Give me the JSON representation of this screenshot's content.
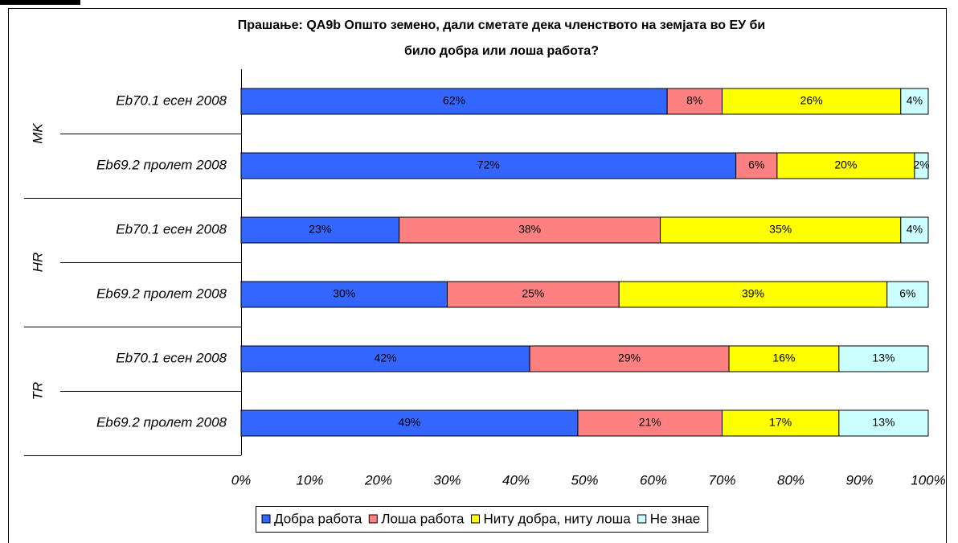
{
  "chart_data": {
    "type": "stacked-bar-horizontal",
    "title": [
      "Прашање: QA9b Општо земено, дали сметате дека членството на земјата во ЕУ би",
      "било добра или лоша работа?"
    ],
    "categories": [
      "Eb70.1 есен 2008",
      "Eb69.2 пролет 2008",
      "Eb70.1 есен 2008",
      "Eb69.2 пролет 2008",
      "Eb70.1 есен 2008",
      "Eb69.2 пролет 2008"
    ],
    "groups": [
      "MK",
      "HR",
      "TR"
    ],
    "series": [
      {
        "name": "Добра работа",
        "color": "#3366ff",
        "values": [
          62,
          72,
          23,
          30,
          42,
          49
        ],
        "value_labels": [
          "62%",
          "72%",
          "23%",
          "30%",
          "42%",
          "49%"
        ]
      },
      {
        "name": "Лоша работа",
        "color": "#ff8080",
        "values": [
          8,
          6,
          38,
          25,
          29,
          21
        ],
        "value_labels": [
          "8%",
          "6%",
          "38%",
          "25%",
          "29%",
          "21%"
        ]
      },
      {
        "name": "Ниту добра, ниту лоша",
        "color": "#ffff00",
        "values": [
          26,
          20,
          35,
          39,
          16,
          17
        ],
        "value_labels": [
          "26%",
          "20%",
          "35%",
          "39%",
          "16%",
          "17%"
        ]
      },
      {
        "name": "Не знае",
        "color": "#ccffff",
        "values": [
          4,
          2,
          4,
          6,
          13,
          13
        ],
        "value_labels": [
          "4%",
          "2%",
          "4%",
          "6%",
          "13%",
          "13%"
        ]
      }
    ],
    "xlim": [
      0,
      100
    ],
    "xticks": [
      {
        "value": 0,
        "label": "0%"
      },
      {
        "value": 10,
        "label": "10%"
      },
      {
        "value": 20,
        "label": "20%"
      },
      {
        "value": 30,
        "label": "30%"
      },
      {
        "value": 40,
        "label": "40%"
      },
      {
        "value": 50,
        "label": "50%"
      },
      {
        "value": 60,
        "label": "60%"
      },
      {
        "value": 70,
        "label": "70%"
      },
      {
        "value": 80,
        "label": "80%"
      },
      {
        "value": 90,
        "label": "90%"
      },
      {
        "value": 100,
        "label": "100%"
      }
    ],
    "legend": "bottom"
  }
}
